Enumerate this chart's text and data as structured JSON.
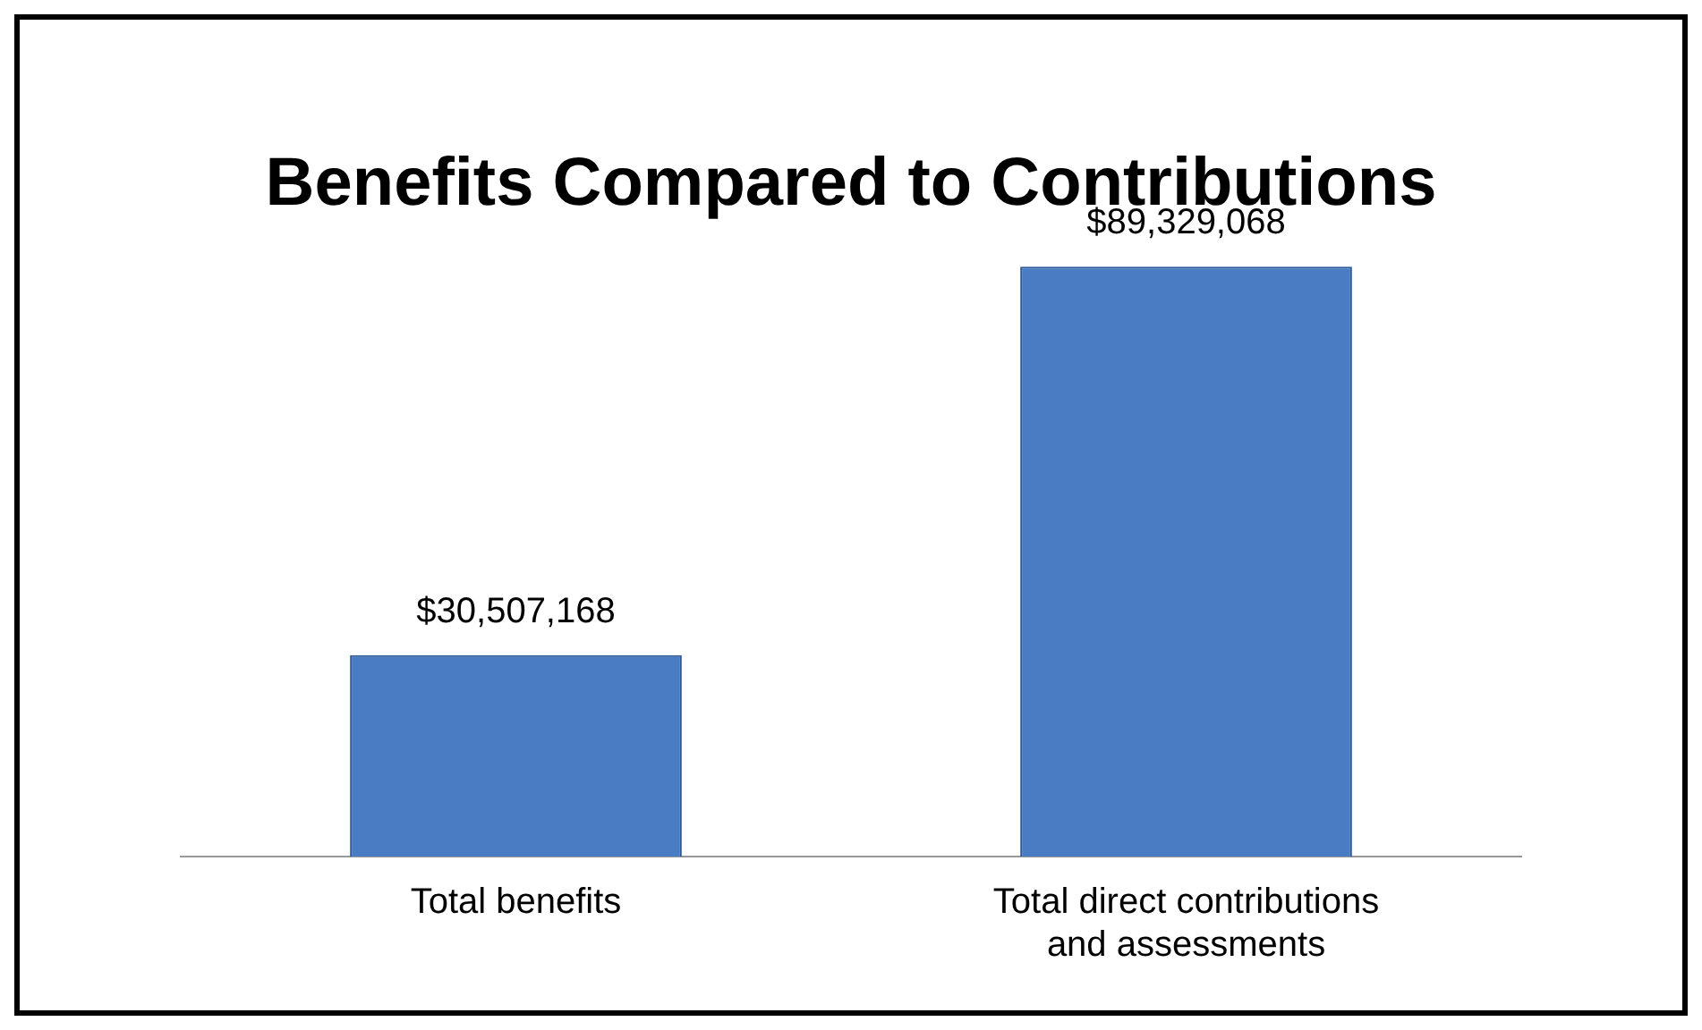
{
  "chart_data": {
    "type": "bar",
    "title": "Benefits Compared to Contributions",
    "categories": [
      "Total benefits",
      "Total direct contributions and assessments"
    ],
    "values": [
      30507168,
      89329068
    ],
    "value_labels": [
      "$30,507,168",
      "$89,329,068"
    ],
    "color": "#4a7cc4",
    "grid": false,
    "legend": false
  }
}
